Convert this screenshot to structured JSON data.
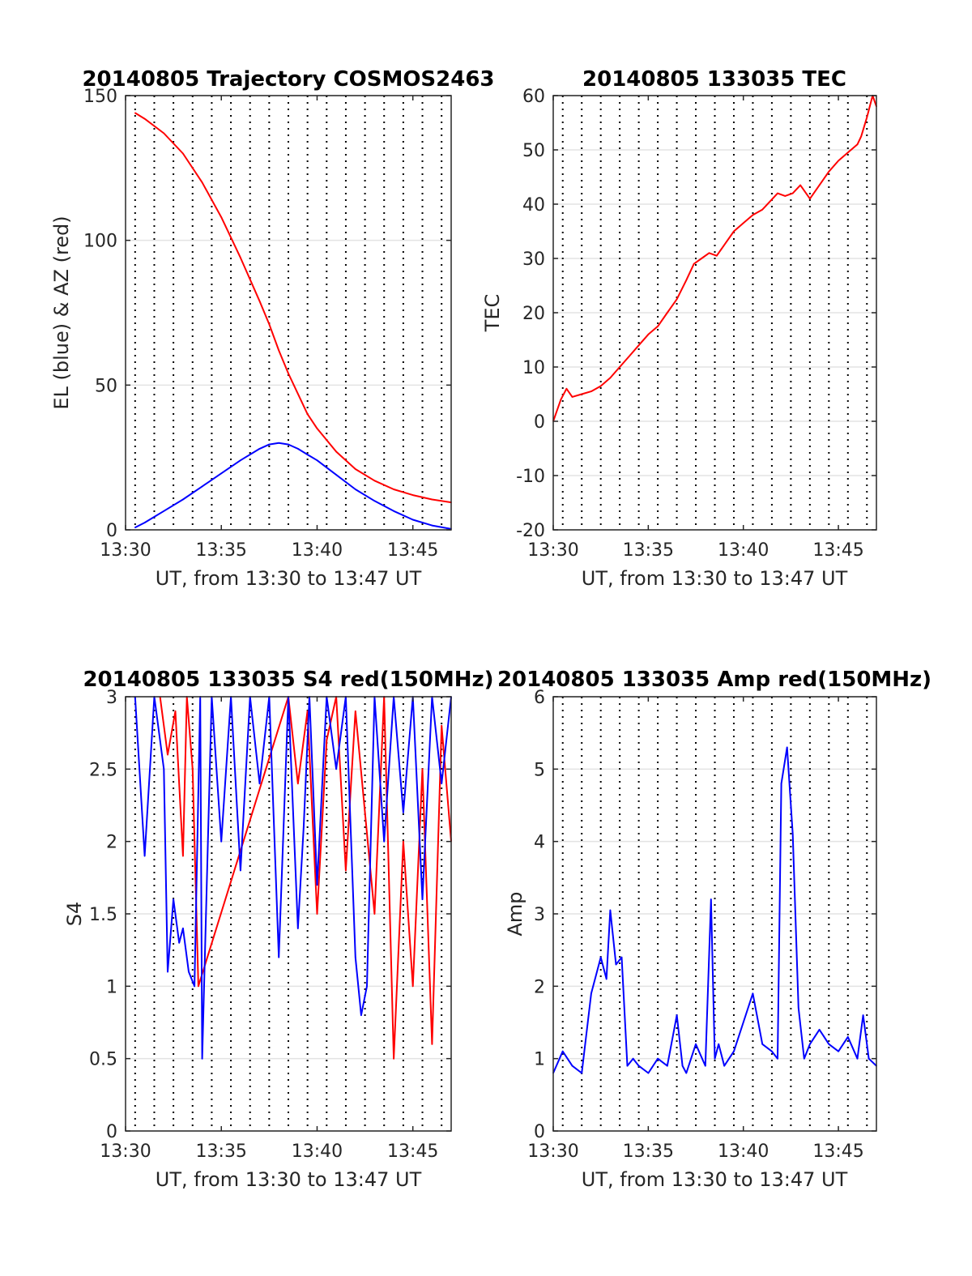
{
  "chart_data": [
    {
      "id": "traj",
      "type": "line",
      "title": "20140805 Trajectory COSMOS2463",
      "xlabel": "UT, from 13:30 to 13:47 UT",
      "ylabel": "EL (blue) & AZ (red)",
      "xlim": [
        0,
        17
      ],
      "ylim": [
        0,
        150
      ],
      "xticks": [
        0,
        5,
        10,
        15
      ],
      "xtick_labels": [
        "13:30",
        "13:35",
        "13:40",
        "13:45"
      ],
      "yticks": [
        0,
        50,
        100,
        150
      ],
      "ytick_labels": [
        "0",
        "50",
        "100",
        "150"
      ],
      "vlines": [
        0.5,
        1.5,
        2.5,
        3.5,
        4.5,
        5.5,
        6.5,
        7.5,
        8.5,
        9.5,
        10.5,
        11.5,
        12.5,
        13.5,
        14.5,
        15.5,
        16.5
      ],
      "grid": true,
      "series": [
        {
          "color": "#ff0000",
          "x": [
            0.5,
            1,
            2,
            3,
            4,
            5,
            6,
            7,
            7.5,
            8,
            8.5,
            9,
            9.5,
            10,
            11,
            12,
            13,
            14,
            15,
            16,
            17
          ],
          "y": [
            144,
            142,
            137,
            130,
            120,
            108,
            94,
            79,
            71,
            62,
            54,
            47,
            40,
            35,
            27,
            21,
            17,
            14,
            12,
            10.5,
            9.5
          ]
        },
        {
          "color": "#0000ff",
          "x": [
            0.5,
            1,
            2,
            3,
            4,
            5,
            6,
            7,
            7.5,
            8,
            8.5,
            9,
            9.5,
            10,
            11,
            12,
            13,
            14,
            15,
            16,
            17
          ],
          "y": [
            0.8,
            2.5,
            6.5,
            10.5,
            15,
            19.5,
            24,
            28,
            29.5,
            30,
            29.5,
            28,
            26,
            24,
            19,
            14,
            10,
            6.5,
            3.5,
            1.5,
            0.3
          ]
        }
      ]
    },
    {
      "id": "tec",
      "type": "line",
      "title": "20140805 133035 TEC",
      "xlabel": "UT, from 13:30 to 13:47 UT",
      "ylabel": "TEC",
      "xlim": [
        0,
        17
      ],
      "ylim": [
        -20,
        60
      ],
      "xticks": [
        0,
        5,
        10,
        15
      ],
      "xtick_labels": [
        "13:30",
        "13:35",
        "13:40",
        "13:45"
      ],
      "yticks": [
        -20,
        -10,
        0,
        10,
        20,
        30,
        40,
        50,
        60
      ],
      "ytick_labels": [
        "-20",
        "-10",
        "0",
        "10",
        "20",
        "30",
        "40",
        "50",
        "60"
      ],
      "vlines": [
        0.5,
        1.5,
        2.5,
        3.5,
        4.5,
        5.5,
        6.5,
        7.5,
        8.5,
        9.5,
        10.5,
        11.5,
        12.5,
        13.5,
        14.5,
        15.5,
        16.5
      ],
      "grid": true,
      "series": [
        {
          "color": "#ff0000",
          "x": [
            0.0,
            0.4,
            0.7,
            1.0,
            1.5,
            2.0,
            2.5,
            3.0,
            3.5,
            4.0,
            4.5,
            5.0,
            5.5,
            6.0,
            6.5,
            7.0,
            7.4,
            7.8,
            8.2,
            8.6,
            9.0,
            9.5,
            10.0,
            10.5,
            11.0,
            11.4,
            11.8,
            12.2,
            12.6,
            13.0,
            13.5,
            14.0,
            14.5,
            15.0,
            15.5,
            16.0,
            16.2,
            16.5,
            16.8,
            17.0
          ],
          "y": [
            0,
            4,
            6,
            4.5,
            5,
            5.5,
            6.5,
            8,
            10,
            12,
            14,
            16,
            17.5,
            20,
            22.5,
            26,
            29,
            30,
            31,
            30.5,
            32.5,
            35,
            36.5,
            38,
            39,
            40.5,
            42,
            41.5,
            42,
            43.5,
            41,
            43.5,
            46,
            48,
            49.5,
            51,
            52.5,
            56,
            60,
            58
          ]
        }
      ]
    },
    {
      "id": "s4",
      "type": "line",
      "title": "20140805 133035 S4 red(150MHz)",
      "xlabel": "UT, from 13:30 to 13:47 UT",
      "ylabel": "S4",
      "xlim": [
        0,
        17
      ],
      "ylim": [
        0,
        3
      ],
      "xticks": [
        0,
        5,
        10,
        15
      ],
      "xtick_labels": [
        "13:30",
        "13:35",
        "13:40",
        "13:45"
      ],
      "yticks": [
        0,
        0.5,
        1,
        1.5,
        2,
        2.5,
        3
      ],
      "ytick_labels": [
        "0",
        "0.5",
        "1",
        "1.5",
        "2",
        "2.5",
        "3"
      ],
      "vlines": [
        0.5,
        1.5,
        2.5,
        3.5,
        4.5,
        5.5,
        6.5,
        7.5,
        8.5,
        9.5,
        10.5,
        11.5,
        12.5,
        13.5,
        14.5,
        15.5,
        16.5
      ],
      "grid": true,
      "series": [
        {
          "color": "#ff0000",
          "x": [
            1.8,
            2.2,
            2.6,
            3.0,
            3.2,
            3.5,
            3.8,
            8.5,
            9.0,
            9.5,
            10.0,
            10.5,
            11.0,
            11.5,
            12.0,
            12.5,
            13.0,
            13.5,
            14.0,
            14.5,
            15.0,
            15.5,
            16.0,
            16.5,
            17.0
          ],
          "y": [
            3,
            2.6,
            2.9,
            1.9,
            3,
            2.5,
            1.0,
            3,
            2.4,
            2.9,
            1.5,
            2.7,
            3,
            1.8,
            2.9,
            2.2,
            1.5,
            3,
            0.5,
            2.0,
            1.0,
            2.5,
            0.6,
            2.8,
            2.0
          ]
        },
        {
          "color": "#0000ff",
          "x": [
            0.5,
            1.0,
            1.5,
            2.0,
            2.2,
            2.5,
            2.8,
            3.0,
            3.3,
            3.6,
            3.9,
            4.0,
            4.5,
            5.0,
            5.5,
            6.0,
            6.5,
            7.0,
            7.5,
            8.0,
            8.5,
            9.0,
            9.3,
            9.6,
            10.0,
            10.5,
            11.0,
            11.5,
            12.0,
            12.3,
            12.6,
            13.0,
            13.5,
            14.0,
            14.5,
            15.0,
            15.5,
            16.0,
            16.5,
            17.0
          ],
          "y": [
            3,
            1.9,
            3,
            2.5,
            1.1,
            1.6,
            1.3,
            1.4,
            1.1,
            1.0,
            3,
            0.5,
            3,
            2.0,
            3,
            1.8,
            3,
            2.4,
            3,
            1.2,
            3,
            1.4,
            2.1,
            3,
            1.7,
            3,
            2.5,
            3,
            1.2,
            0.8,
            1.0,
            3,
            2.0,
            3,
            2.2,
            3,
            1.6,
            3,
            2.4,
            3
          ]
        }
      ]
    },
    {
      "id": "amp",
      "type": "line",
      "title": "20140805 133035 Amp red(150MHz)",
      "xlabel": "UT, from 13:30 to 13:47 UT",
      "ylabel": "Amp",
      "xlim": [
        0,
        17
      ],
      "ylim": [
        0,
        6
      ],
      "xticks": [
        0,
        5,
        10,
        15
      ],
      "xtick_labels": [
        "13:30",
        "13:35",
        "13:40",
        "13:45"
      ],
      "yticks": [
        0,
        1,
        2,
        3,
        4,
        5,
        6
      ],
      "ytick_labels": [
        "0",
        "1",
        "2",
        "3",
        "4",
        "5",
        "6"
      ],
      "vlines": [
        0.5,
        1.5,
        2.5,
        3.5,
        4.5,
        5.5,
        6.5,
        7.5,
        8.5,
        9.5,
        10.5,
        11.5,
        12.5,
        13.5,
        14.5,
        15.5,
        16.5
      ],
      "grid": true,
      "series": [
        {
          "color": "#0000ff",
          "x": [
            0.0,
            0.5,
            1.0,
            1.5,
            2.0,
            2.5,
            2.8,
            3.0,
            3.3,
            3.6,
            3.9,
            4.2,
            4.5,
            5.0,
            5.5,
            6.0,
            6.5,
            6.8,
            7.0,
            7.5,
            8.0,
            8.3,
            8.5,
            8.7,
            9.0,
            9.5,
            10.0,
            10.5,
            11.0,
            11.5,
            11.8,
            12.0,
            12.3,
            12.6,
            12.9,
            13.2,
            13.5,
            14.0,
            14.5,
            15.0,
            15.5,
            16.0,
            16.3,
            16.6,
            17.0
          ],
          "y": [
            0.8,
            1.1,
            0.9,
            0.8,
            1.9,
            2.4,
            2.1,
            3.05,
            2.3,
            2.4,
            0.9,
            1.0,
            0.9,
            0.8,
            1.0,
            0.9,
            1.6,
            0.9,
            0.8,
            1.2,
            0.9,
            3.2,
            1.0,
            1.2,
            0.9,
            1.1,
            1.5,
            1.9,
            1.2,
            1.1,
            1.0,
            4.8,
            5.3,
            4.1,
            1.7,
            1.0,
            1.2,
            1.4,
            1.2,
            1.1,
            1.3,
            1.0,
            1.6,
            1.0,
            0.9
          ]
        }
      ]
    }
  ]
}
